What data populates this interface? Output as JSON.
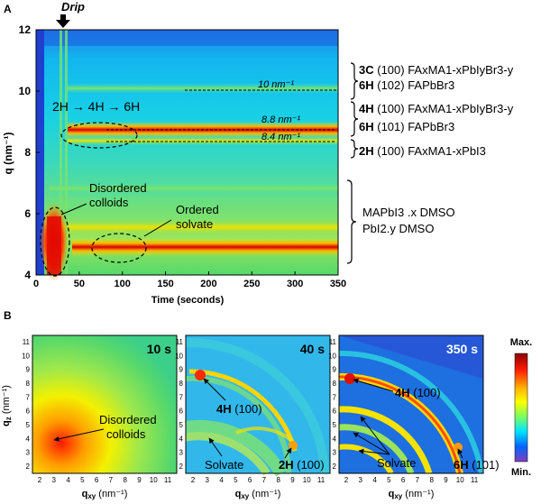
{
  "panel_a": {
    "label": "A",
    "y_axis_label": "q (nm⁻¹)",
    "x_axis_label": "Time (seconds)",
    "x_ticks": [
      "0",
      "50",
      "100",
      "150",
      "200",
      "250",
      "300",
      "350"
    ],
    "y_ticks": [
      "4",
      "6",
      "8",
      "10",
      "12"
    ],
    "drip_label": "Drip",
    "transition_label": "2H → 4H → 6H",
    "line_labels": {
      "l10": "10 nm⁻¹",
      "l88": "8.8 nm⁻¹",
      "l84": "8.4 nm⁻¹"
    },
    "disordered_label": [
      "Disordered",
      "colloids"
    ],
    "ordered_label": [
      "Ordered",
      "solvate"
    ],
    "assignments": [
      {
        "phase": "3C",
        "text": " (100) FAxMA1-xPbIyBr3-y"
      },
      {
        "phase": "6H",
        "text": " (102) FAPbBr3"
      },
      {
        "phase": "4H",
        "text": " (100) FAxMA1-xPbIyBr3-y"
      },
      {
        "phase": "6H",
        "text": " (101) FAPbBr3"
      },
      {
        "phase": "2H",
        "text": " (100)  FAxMA1-xPbI3"
      }
    ],
    "solvate_assign": [
      "MAPbI3 .x DMSO",
      "PbI2.y DMSO"
    ]
  },
  "panel_b": {
    "label": "B",
    "x_axis_label": "qxy (nm⁻¹)",
    "y_axis_label": "qz (nm⁻¹)",
    "x_ticks": [
      "2",
      "3",
      "4",
      "5",
      "6",
      "7",
      "8",
      "9",
      "10",
      "11"
    ],
    "y_ticks": [
      "2",
      "3",
      "4",
      "5",
      "6",
      "7",
      "8",
      "9",
      "10",
      "11"
    ],
    "maps": [
      {
        "time": "10 s",
        "annotations": [
          "Disordered",
          "colloids"
        ]
      },
      {
        "time": "40 s",
        "annotations": [
          "4H (100)",
          "Solvate",
          "2H (100)"
        ]
      },
      {
        "time": "350 s",
        "annotations": [
          "4H (100)",
          "Solvate",
          "6H (101)"
        ]
      }
    ],
    "colorbar": {
      "max": "Max.",
      "min": "Min."
    }
  },
  "colors": {
    "background_map": "#16c8ea",
    "peak": "#d40000",
    "green_band": "#6fe06a",
    "yellow_band": "#f4e200"
  }
}
